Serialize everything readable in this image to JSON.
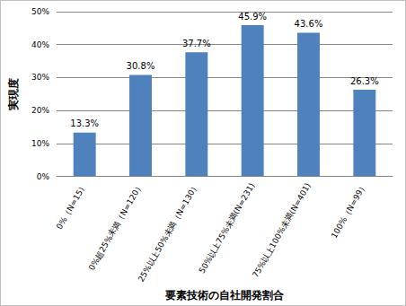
{
  "chart_data": {
    "type": "bar",
    "x_label": "要素技術の自社開発割合",
    "y_label": "実現度",
    "categories": [
      "0%（N=15）",
      "0%超25%未満（N=120）",
      "25%以上50%未満（N=130）",
      "50%以上75%未満(N=231)",
      "75%以上100%未満(N=401)",
      "100%（N=99）"
    ],
    "values": [
      13.3,
      30.8,
      37.7,
      45.9,
      43.6,
      26.3
    ],
    "value_labels": [
      "13.3%",
      "30.8%",
      "37.7%",
      "45.9%",
      "43.6%",
      "26.3%"
    ],
    "color": "#4f81bd",
    "ylim": [
      0,
      50
    ],
    "yticks": [
      {
        "value": 0,
        "label": "0%"
      },
      {
        "value": 10,
        "label": "10%"
      },
      {
        "value": 20,
        "label": "20%"
      },
      {
        "value": 30,
        "label": "30%"
      },
      {
        "value": 40,
        "label": "40%"
      },
      {
        "value": 50,
        "label": "50%"
      }
    ],
    "grid": true,
    "data_labels": true
  }
}
